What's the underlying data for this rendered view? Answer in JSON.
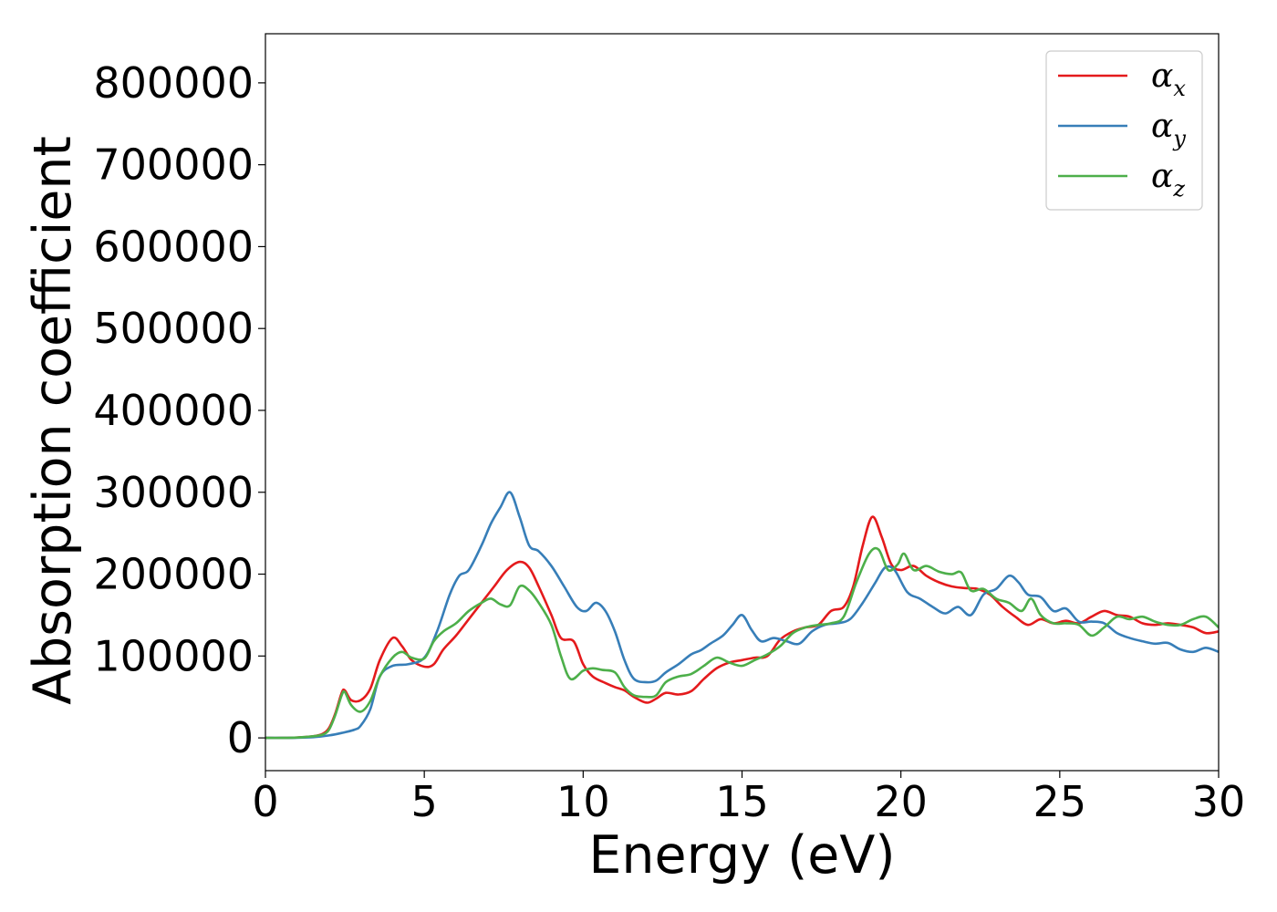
{
  "chart_data": {
    "type": "line",
    "title": "",
    "xlabel": "Energy (eV)",
    "ylabel": "Absorption coefficient",
    "xlim": [
      0,
      30
    ],
    "ylim": [
      -40000,
      860000
    ],
    "xticks": [
      0,
      5,
      10,
      15,
      20,
      25,
      30
    ],
    "yticks": [
      0,
      100000,
      200000,
      300000,
      400000,
      500000,
      600000,
      700000,
      800000
    ],
    "grid": false,
    "legend_position": "top-right",
    "series": [
      {
        "name": "α_x",
        "label_base": "α",
        "label_sub": "x",
        "color": "#e41a1c",
        "points": [
          [
            0,
            0
          ],
          [
            0.5,
            0
          ],
          [
            1.0,
            500
          ],
          [
            1.5,
            2000
          ],
          [
            1.8,
            5000
          ],
          [
            2.0,
            12000
          ],
          [
            2.2,
            30000
          ],
          [
            2.4,
            55000
          ],
          [
            2.5,
            58000
          ],
          [
            2.7,
            46000
          ],
          [
            3.0,
            46000
          ],
          [
            3.3,
            60000
          ],
          [
            3.6,
            95000
          ],
          [
            4.0,
            122000
          ],
          [
            4.3,
            112000
          ],
          [
            4.6,
            95000
          ],
          [
            5.0,
            87000
          ],
          [
            5.3,
            90000
          ],
          [
            5.6,
            108000
          ],
          [
            6.0,
            125000
          ],
          [
            6.4,
            145000
          ],
          [
            6.8,
            165000
          ],
          [
            7.2,
            185000
          ],
          [
            7.6,
            205000
          ],
          [
            8.0,
            215000
          ],
          [
            8.3,
            208000
          ],
          [
            8.6,
            185000
          ],
          [
            9.0,
            150000
          ],
          [
            9.3,
            122000
          ],
          [
            9.7,
            118000
          ],
          [
            10.0,
            90000
          ],
          [
            10.3,
            75000
          ],
          [
            10.7,
            67000
          ],
          [
            11.0,
            62000
          ],
          [
            11.3,
            58000
          ],
          [
            11.6,
            50000
          ],
          [
            12.0,
            43000
          ],
          [
            12.3,
            48000
          ],
          [
            12.6,
            55000
          ],
          [
            13.0,
            53000
          ],
          [
            13.4,
            57000
          ],
          [
            13.8,
            72000
          ],
          [
            14.2,
            85000
          ],
          [
            14.6,
            92000
          ],
          [
            15.0,
            95000
          ],
          [
            15.4,
            98000
          ],
          [
            15.8,
            100000
          ],
          [
            16.2,
            120000
          ],
          [
            16.6,
            130000
          ],
          [
            17.0,
            135000
          ],
          [
            17.4,
            138000
          ],
          [
            17.8,
            155000
          ],
          [
            18.2,
            160000
          ],
          [
            18.5,
            185000
          ],
          [
            18.8,
            235000
          ],
          [
            19.1,
            270000
          ],
          [
            19.4,
            245000
          ],
          [
            19.7,
            212000
          ],
          [
            20.0,
            205000
          ],
          [
            20.4,
            210000
          ],
          [
            20.8,
            198000
          ],
          [
            21.2,
            190000
          ],
          [
            21.6,
            185000
          ],
          [
            22.0,
            183000
          ],
          [
            22.4,
            182000
          ],
          [
            22.8,
            175000
          ],
          [
            23.2,
            160000
          ],
          [
            23.6,
            148000
          ],
          [
            24.0,
            138000
          ],
          [
            24.4,
            145000
          ],
          [
            24.8,
            140000
          ],
          [
            25.2,
            143000
          ],
          [
            25.6,
            140000
          ],
          [
            26.0,
            148000
          ],
          [
            26.4,
            155000
          ],
          [
            26.8,
            150000
          ],
          [
            27.2,
            148000
          ],
          [
            27.6,
            140000
          ],
          [
            28.0,
            138000
          ],
          [
            28.4,
            140000
          ],
          [
            28.8,
            138000
          ],
          [
            29.2,
            135000
          ],
          [
            29.6,
            128000
          ],
          [
            30.0,
            130000
          ]
        ]
      },
      {
        "name": "α_y",
        "label_base": "α",
        "label_sub": "y",
        "color": "#377eb8",
        "points": [
          [
            0,
            0
          ],
          [
            0.5,
            0
          ],
          [
            1.0,
            200
          ],
          [
            1.5,
            800
          ],
          [
            2.0,
            3000
          ],
          [
            2.4,
            6000
          ],
          [
            2.8,
            10000
          ],
          [
            3.0,
            15000
          ],
          [
            3.3,
            35000
          ],
          [
            3.6,
            75000
          ],
          [
            4.0,
            88000
          ],
          [
            4.5,
            90000
          ],
          [
            5.0,
            98000
          ],
          [
            5.4,
            130000
          ],
          [
            5.8,
            175000
          ],
          [
            6.1,
            198000
          ],
          [
            6.4,
            205000
          ],
          [
            6.8,
            235000
          ],
          [
            7.1,
            262000
          ],
          [
            7.4,
            282000
          ],
          [
            7.7,
            300000
          ],
          [
            8.0,
            270000
          ],
          [
            8.3,
            235000
          ],
          [
            8.6,
            228000
          ],
          [
            9.0,
            210000
          ],
          [
            9.4,
            185000
          ],
          [
            9.8,
            160000
          ],
          [
            10.1,
            155000
          ],
          [
            10.4,
            165000
          ],
          [
            10.7,
            155000
          ],
          [
            11.0,
            130000
          ],
          [
            11.3,
            95000
          ],
          [
            11.6,
            72000
          ],
          [
            12.0,
            68000
          ],
          [
            12.3,
            70000
          ],
          [
            12.6,
            80000
          ],
          [
            13.0,
            90000
          ],
          [
            13.4,
            102000
          ],
          [
            13.7,
            107000
          ],
          [
            14.0,
            115000
          ],
          [
            14.4,
            125000
          ],
          [
            14.7,
            138000
          ],
          [
            15.0,
            150000
          ],
          [
            15.3,
            132000
          ],
          [
            15.6,
            118000
          ],
          [
            16.0,
            122000
          ],
          [
            16.4,
            118000
          ],
          [
            16.8,
            115000
          ],
          [
            17.2,
            130000
          ],
          [
            17.6,
            138000
          ],
          [
            18.0,
            140000
          ],
          [
            18.4,
            145000
          ],
          [
            18.8,
            165000
          ],
          [
            19.2,
            190000
          ],
          [
            19.5,
            208000
          ],
          [
            19.8,
            205000
          ],
          [
            20.2,
            178000
          ],
          [
            20.6,
            170000
          ],
          [
            21.0,
            160000
          ],
          [
            21.4,
            152000
          ],
          [
            21.8,
            160000
          ],
          [
            22.2,
            150000
          ],
          [
            22.6,
            175000
          ],
          [
            23.0,
            182000
          ],
          [
            23.4,
            198000
          ],
          [
            23.7,
            190000
          ],
          [
            24.0,
            175000
          ],
          [
            24.4,
            172000
          ],
          [
            24.8,
            155000
          ],
          [
            25.2,
            158000
          ],
          [
            25.6,
            142000
          ],
          [
            26.0,
            142000
          ],
          [
            26.4,
            140000
          ],
          [
            26.8,
            128000
          ],
          [
            27.2,
            122000
          ],
          [
            27.6,
            118000
          ],
          [
            28.0,
            115000
          ],
          [
            28.4,
            116000
          ],
          [
            28.8,
            108000
          ],
          [
            29.2,
            105000
          ],
          [
            29.6,
            110000
          ],
          [
            30.0,
            105000
          ]
        ]
      },
      {
        "name": "α_z",
        "label_base": "α",
        "label_sub": "z",
        "color": "#4daf4a",
        "points": [
          [
            0,
            0
          ],
          [
            0.5,
            0
          ],
          [
            1.0,
            500
          ],
          [
            1.5,
            2000
          ],
          [
            1.8,
            4000
          ],
          [
            2.0,
            10000
          ],
          [
            2.2,
            28000
          ],
          [
            2.4,
            52000
          ],
          [
            2.5,
            56000
          ],
          [
            2.7,
            40000
          ],
          [
            3.0,
            32000
          ],
          [
            3.3,
            45000
          ],
          [
            3.6,
            75000
          ],
          [
            4.0,
            98000
          ],
          [
            4.3,
            105000
          ],
          [
            4.6,
            98000
          ],
          [
            5.0,
            97000
          ],
          [
            5.3,
            118000
          ],
          [
            5.6,
            130000
          ],
          [
            6.0,
            140000
          ],
          [
            6.4,
            155000
          ],
          [
            6.8,
            165000
          ],
          [
            7.1,
            170000
          ],
          [
            7.4,
            163000
          ],
          [
            7.7,
            162000
          ],
          [
            8.0,
            185000
          ],
          [
            8.3,
            180000
          ],
          [
            8.6,
            165000
          ],
          [
            9.0,
            138000
          ],
          [
            9.3,
            100000
          ],
          [
            9.6,
            72000
          ],
          [
            10.0,
            82000
          ],
          [
            10.3,
            85000
          ],
          [
            10.6,
            83000
          ],
          [
            11.0,
            80000
          ],
          [
            11.3,
            62000
          ],
          [
            11.6,
            52000
          ],
          [
            12.0,
            50000
          ],
          [
            12.3,
            52000
          ],
          [
            12.6,
            68000
          ],
          [
            13.0,
            75000
          ],
          [
            13.4,
            78000
          ],
          [
            13.8,
            88000
          ],
          [
            14.2,
            98000
          ],
          [
            14.6,
            92000
          ],
          [
            15.0,
            88000
          ],
          [
            15.4,
            95000
          ],
          [
            15.8,
            102000
          ],
          [
            16.2,
            112000
          ],
          [
            16.6,
            128000
          ],
          [
            17.0,
            135000
          ],
          [
            17.4,
            138000
          ],
          [
            17.8,
            140000
          ],
          [
            18.2,
            148000
          ],
          [
            18.6,
            190000
          ],
          [
            19.0,
            225000
          ],
          [
            19.3,
            230000
          ],
          [
            19.6,
            205000
          ],
          [
            19.9,
            212000
          ],
          [
            20.1,
            225000
          ],
          [
            20.4,
            205000
          ],
          [
            20.8,
            210000
          ],
          [
            21.2,
            203000
          ],
          [
            21.6,
            200000
          ],
          [
            21.9,
            202000
          ],
          [
            22.2,
            180000
          ],
          [
            22.6,
            182000
          ],
          [
            23.0,
            170000
          ],
          [
            23.4,
            165000
          ],
          [
            23.8,
            155000
          ],
          [
            24.1,
            170000
          ],
          [
            24.4,
            150000
          ],
          [
            24.8,
            140000
          ],
          [
            25.2,
            140000
          ],
          [
            25.6,
            138000
          ],
          [
            26.0,
            125000
          ],
          [
            26.4,
            135000
          ],
          [
            26.8,
            148000
          ],
          [
            27.2,
            145000
          ],
          [
            27.6,
            148000
          ],
          [
            28.0,
            142000
          ],
          [
            28.4,
            138000
          ],
          [
            28.8,
            138000
          ],
          [
            29.2,
            145000
          ],
          [
            29.6,
            148000
          ],
          [
            30.0,
            135000
          ]
        ]
      }
    ]
  }
}
